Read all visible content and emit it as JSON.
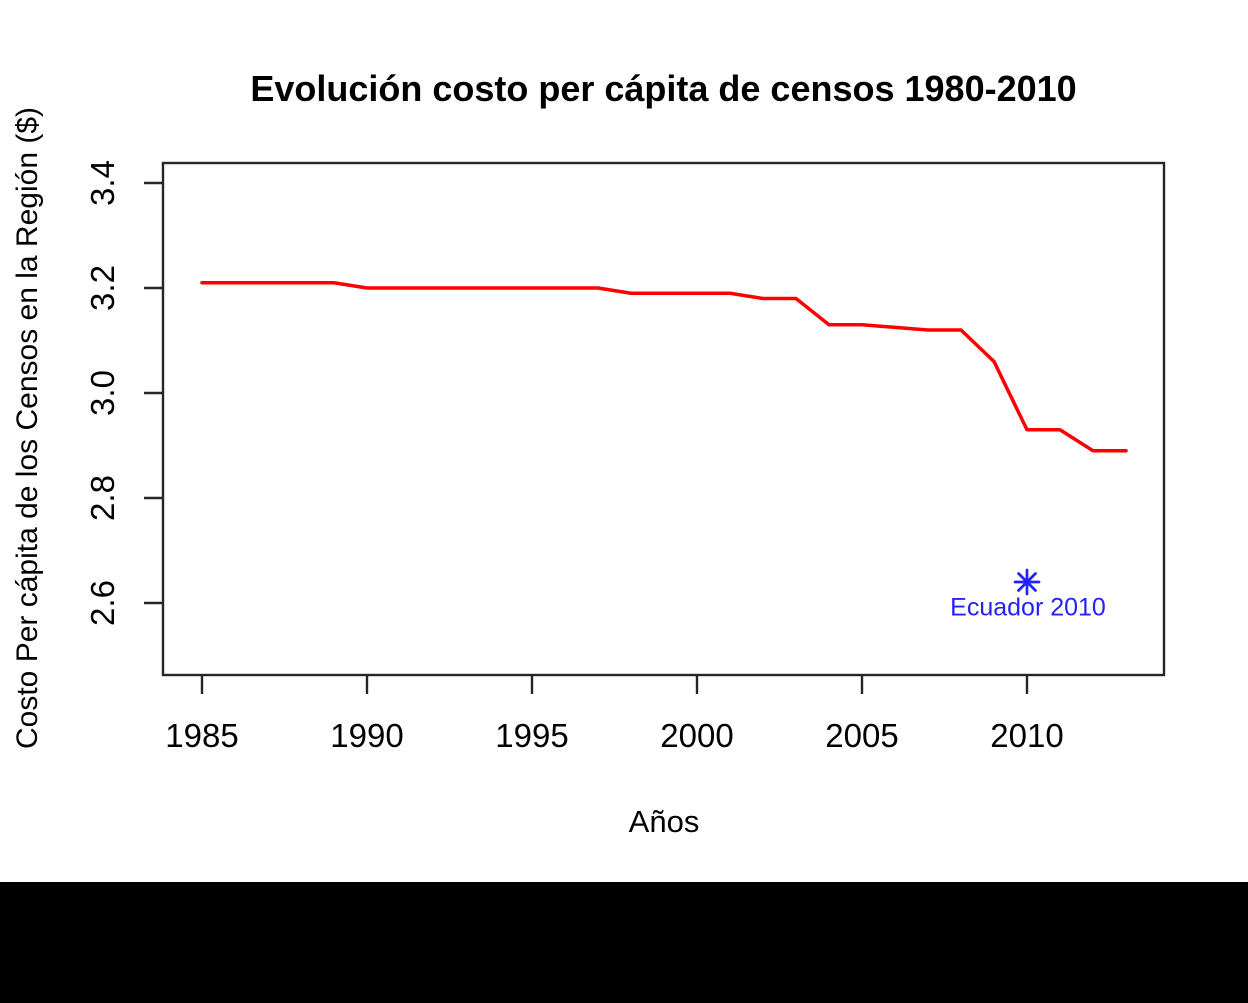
{
  "page": {
    "background_color": "#ffffff",
    "bottom_bar_color": "#000000",
    "axis_color": "#262626",
    "text_color": "#000000"
  },
  "chart_data": {
    "type": "line",
    "title": "Evolución costo per cápita de censos 1980-2010",
    "xlabel": "Años",
    "ylabel": "Costo Per cápita de los Censos en la Región ($)",
    "x_ticks": [
      1985,
      1990,
      1995,
      2000,
      2005,
      2010
    ],
    "y_ticks": [
      "3.4",
      "3.2",
      "3.0",
      "2.8",
      "2.6"
    ],
    "xlim": [
      1983.8,
      2014.2
    ],
    "ylim": [
      2.46,
      3.44
    ],
    "grid": false,
    "legend": "none",
    "series": [
      {
        "name": "Costo per cápita de los censos en la región",
        "color": "#ff0000",
        "x": [
          1985,
          1986,
          1987,
          1988,
          1989,
          1990,
          1991,
          1992,
          1993,
          1994,
          1995,
          1996,
          1997,
          1998,
          1999,
          2000,
          2001,
          2002,
          2003,
          2004,
          2005,
          2006,
          2007,
          2008,
          2009,
          2010,
          2011,
          2012,
          2013
        ],
        "y": [
          3.21,
          3.21,
          3.21,
          3.21,
          3.21,
          3.2,
          3.2,
          3.2,
          3.2,
          3.2,
          3.2,
          3.2,
          3.2,
          3.19,
          3.19,
          3.19,
          3.19,
          3.18,
          3.18,
          3.13,
          3.13,
          3.125,
          3.12,
          3.12,
          3.06,
          2.93,
          2.93,
          2.89,
          2.89
        ]
      }
    ],
    "annotations": [
      {
        "type": "point",
        "x": 2010,
        "y": 2.64,
        "marker": "asterisk-8-spoke",
        "color": "#2222ff",
        "label": "Ecuador 2010"
      }
    ]
  }
}
